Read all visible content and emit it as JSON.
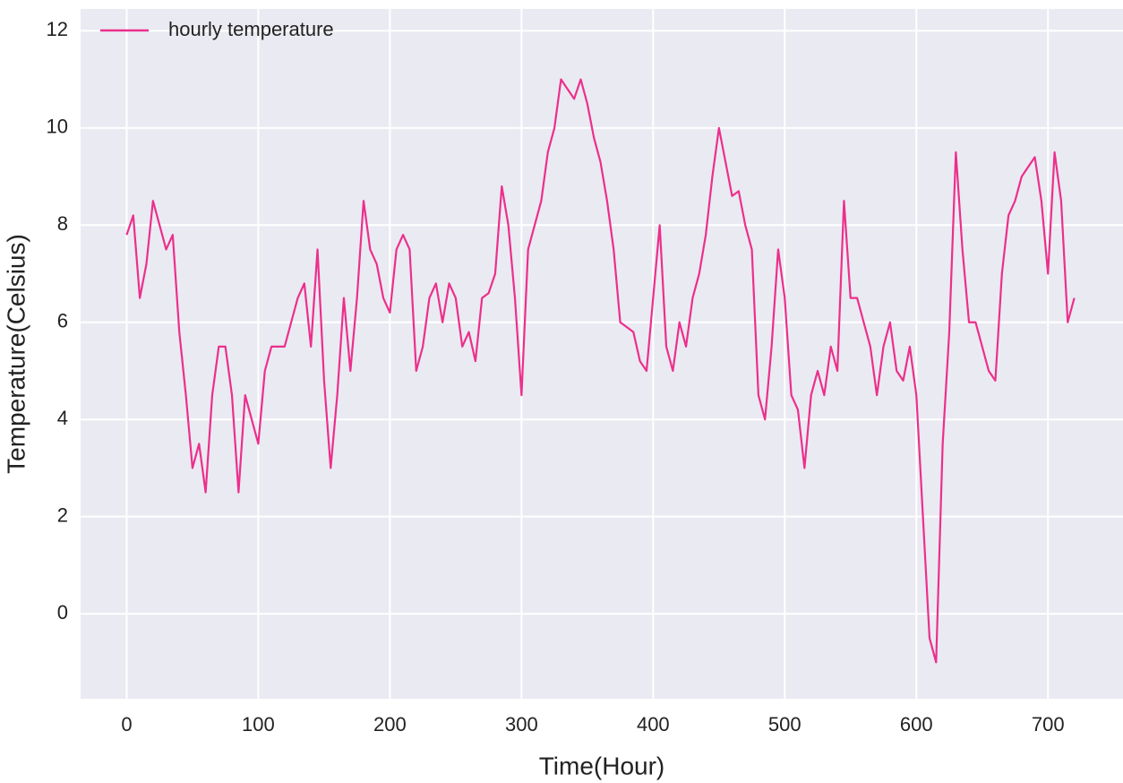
{
  "chart_data": {
    "type": "line",
    "xlabel": "Time(Hour)",
    "ylabel": "Temperature(Celsius)",
    "xlim": [
      -35,
      757
    ],
    "ylim": [
      -1.75,
      12.45
    ],
    "xticks": [
      0,
      100,
      200,
      300,
      400,
      500,
      600,
      700
    ],
    "yticks": [
      0,
      2,
      4,
      6,
      8,
      10,
      12
    ],
    "grid": true,
    "legend": "upper left",
    "x": [
      0,
      5,
      10,
      15,
      20,
      25,
      30,
      35,
      40,
      45,
      50,
      55,
      60,
      65,
      70,
      75,
      80,
      85,
      90,
      95,
      100,
      105,
      110,
      115,
      120,
      125,
      130,
      135,
      140,
      145,
      150,
      155,
      160,
      165,
      170,
      175,
      180,
      185,
      190,
      195,
      200,
      205,
      210,
      215,
      220,
      225,
      230,
      235,
      240,
      245,
      250,
      255,
      260,
      265,
      270,
      275,
      280,
      285,
      290,
      295,
      300,
      305,
      310,
      315,
      320,
      325,
      330,
      335,
      340,
      345,
      350,
      355,
      360,
      365,
      370,
      375,
      380,
      385,
      390,
      395,
      400,
      405,
      410,
      415,
      420,
      425,
      430,
      435,
      440,
      445,
      450,
      455,
      460,
      465,
      470,
      475,
      480,
      485,
      490,
      495,
      500,
      505,
      510,
      515,
      520,
      525,
      530,
      535,
      540,
      545,
      550,
      555,
      560,
      565,
      570,
      575,
      580,
      585,
      590,
      595,
      600,
      605,
      610,
      615,
      620,
      625,
      630,
      635,
      640,
      645,
      650,
      655,
      660,
      665,
      670,
      675,
      680,
      685,
      690,
      695,
      700,
      705,
      710,
      715,
      720
    ],
    "series": [
      {
        "name": "hourly temperature",
        "color": "#ec2f8c",
        "values": [
          7.8,
          8.2,
          6.5,
          7.2,
          8.5,
          8.0,
          7.5,
          7.8,
          5.8,
          4.5,
          3.0,
          3.5,
          2.5,
          4.5,
          5.5,
          5.5,
          4.5,
          2.5,
          4.5,
          4.0,
          3.5,
          5.0,
          5.5,
          5.5,
          5.5,
          6.0,
          6.5,
          6.8,
          5.5,
          7.5,
          4.8,
          3.0,
          4.5,
          6.5,
          5.0,
          6.5,
          8.5,
          7.5,
          7.2,
          6.5,
          6.2,
          7.5,
          7.8,
          7.5,
          5.0,
          5.5,
          6.5,
          6.8,
          6.0,
          6.8,
          6.5,
          5.5,
          5.8,
          5.2,
          6.5,
          6.6,
          7.0,
          8.8,
          8.0,
          6.5,
          4.5,
          7.5,
          8.0,
          8.5,
          9.5,
          10.0,
          11.0,
          10.8,
          10.6,
          11.0,
          10.5,
          9.8,
          9.3,
          8.5,
          7.5,
          6.0,
          5.9,
          5.8,
          5.2,
          5.0,
          6.5,
          8.0,
          5.5,
          5.0,
          6.0,
          5.5,
          6.5,
          7.0,
          7.8,
          9.0,
          10.0,
          9.3,
          8.6,
          8.7,
          8.0,
          7.5,
          4.5,
          4.0,
          5.5,
          7.5,
          6.5,
          4.5,
          4.2,
          3.0,
          4.5,
          5.0,
          4.5,
          5.5,
          5.0,
          8.5,
          6.5,
          6.5,
          6.0,
          5.5,
          4.5,
          5.5,
          6.0,
          5.0,
          4.8,
          5.5,
          4.5,
          2.0,
          -0.5,
          -1.0,
          3.5,
          5.8,
          9.5,
          7.5,
          6.0,
          6.0,
          5.5,
          5.0,
          4.8,
          7.0,
          8.2,
          8.5,
          9.0,
          9.2,
          9.4,
          8.5,
          7.0,
          9.5,
          8.5,
          6.0,
          6.5
        ]
      }
    ]
  }
}
